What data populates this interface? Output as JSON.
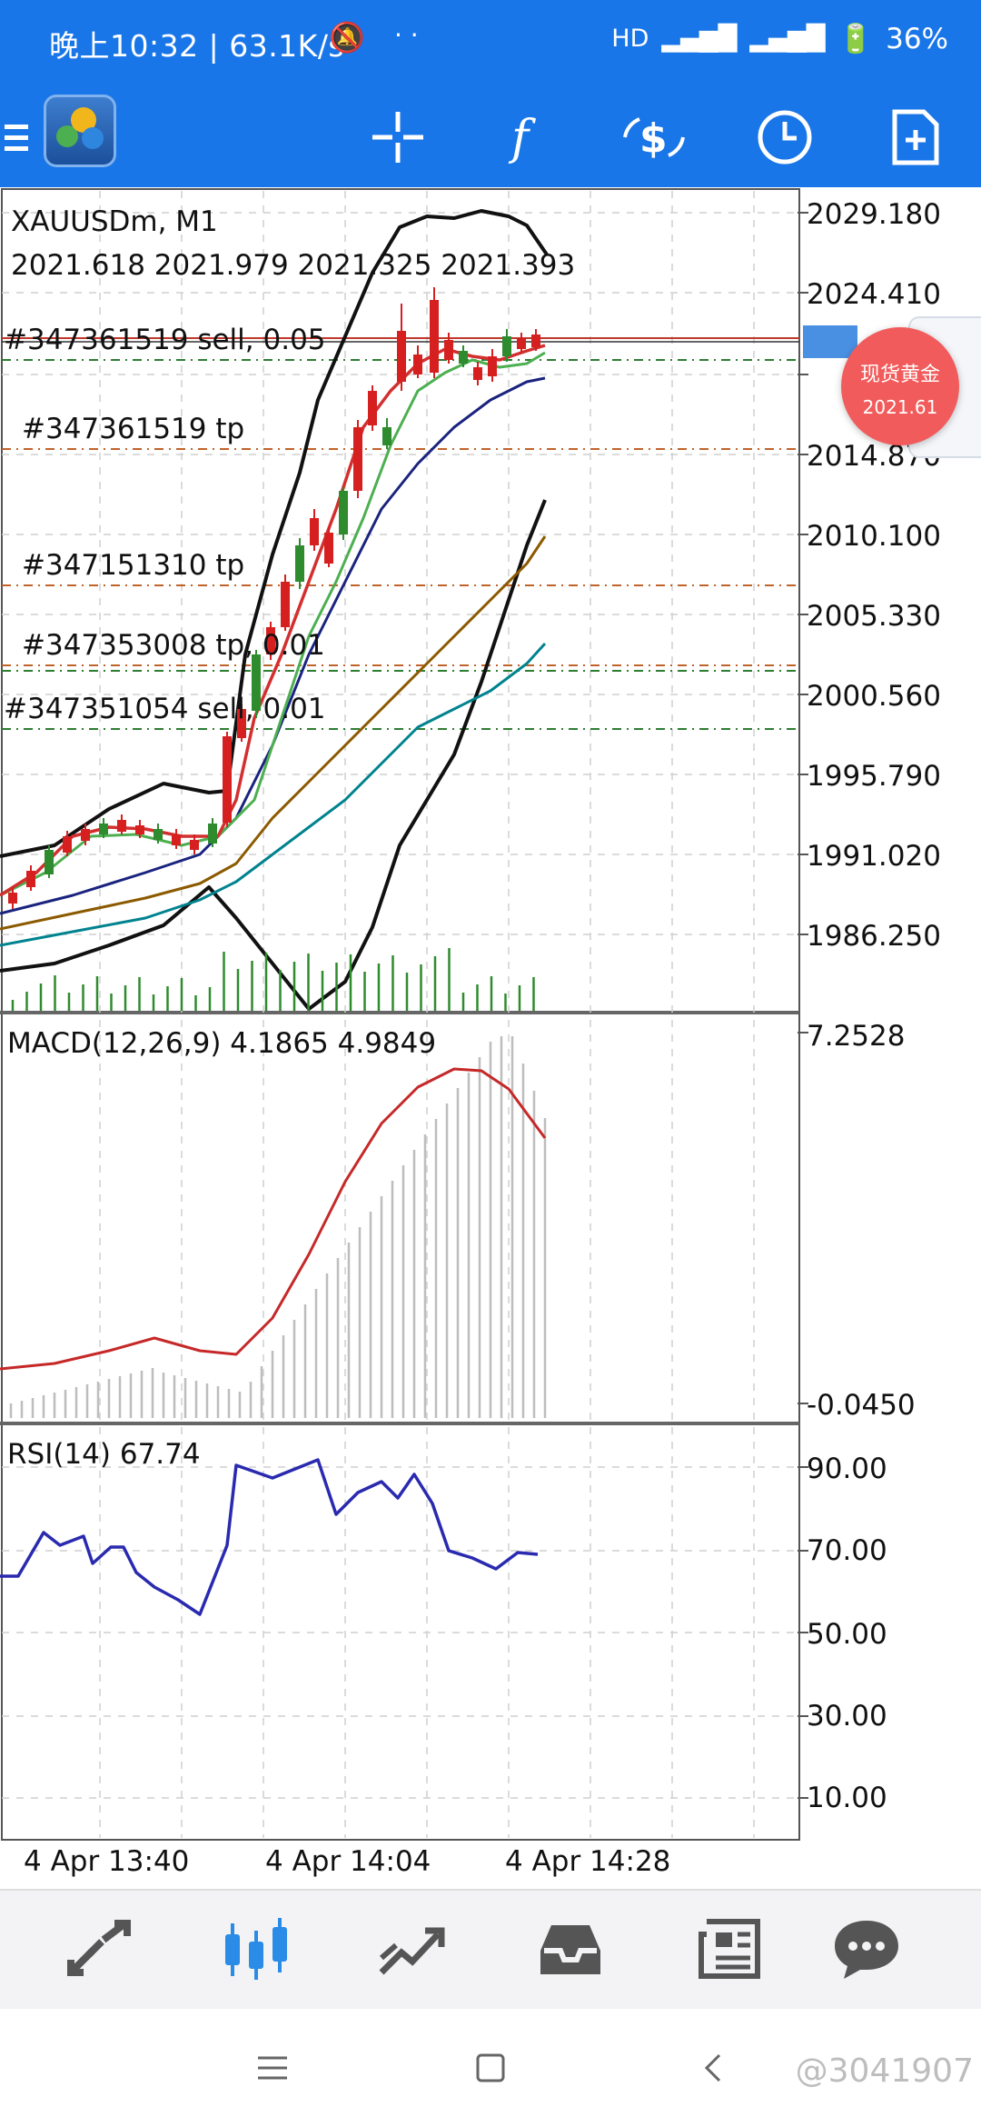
{
  "status_bar": {
    "time_text": "晚上10:32 | 63.1K/s",
    "battery": "36%"
  },
  "symbol": {
    "name": "XAUUSDm, M1",
    "ohlc": "2021.618  2021.979  2021.325  2021.393"
  },
  "price_scale": [
    "2029.180",
    "2024.410",
    "2014.870",
    "2010.100",
    "2005.330",
    "2000.560",
    "1995.790",
    "1991.020",
    "1986.250"
  ],
  "orders": [
    {
      "label": "#347361519 sell, 0.05"
    },
    {
      "label": "#347361519 tp"
    },
    {
      "label": "#347151310 tp"
    },
    {
      "label": "#347353008 tp, 0.01"
    },
    {
      "label": "#347351054 sell, 0.01"
    }
  ],
  "macd": {
    "label": "MACD(12,26,9) 4.1865 4.9849",
    "scale_top": "7.2528",
    "scale_bottom": "-0.0450"
  },
  "rsi": {
    "label": "RSI(14) 67.74",
    "scale": [
      "90.00",
      "70.00",
      "50.00",
      "30.00",
      "10.00"
    ]
  },
  "time_axis": [
    "4 Apr 13:40",
    "4 Apr 14:04",
    "4 Apr 14:28"
  ],
  "floating": {
    "name": "现货黄金",
    "price": "2021.61"
  },
  "watermark": "@3041907",
  "colors": {
    "accent": "#1976e8",
    "bull": "#d62020",
    "bear": "#2e8b2e",
    "bubble": "#f25b5b"
  }
}
